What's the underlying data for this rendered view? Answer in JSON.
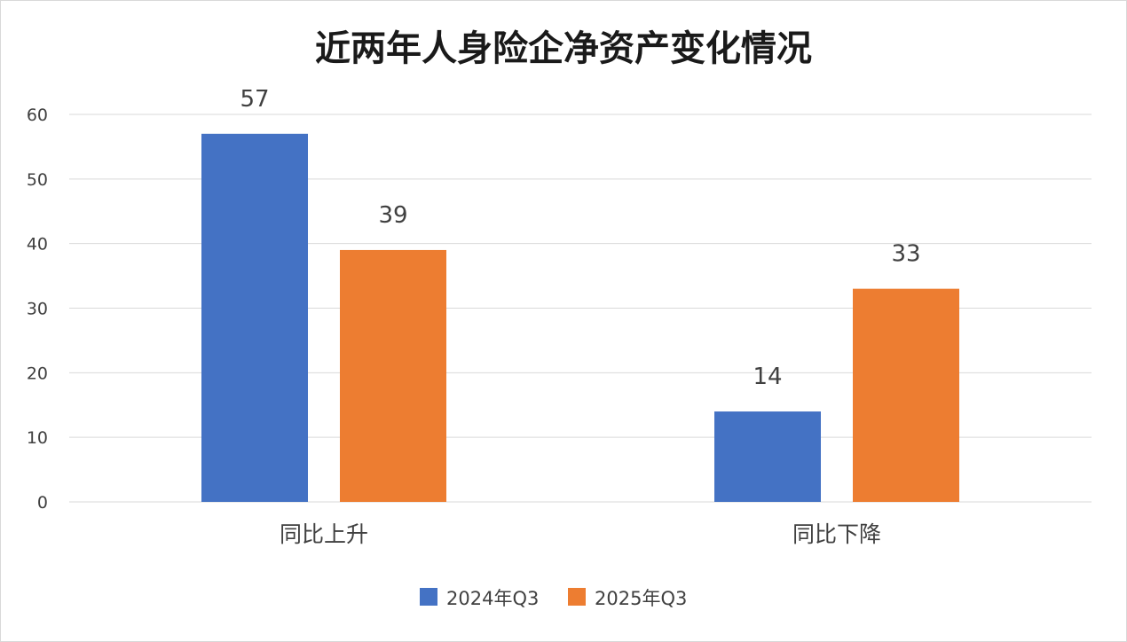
{
  "chart_data": {
    "type": "bar",
    "title": "近两年人身险企净资产变化情况",
    "categories": [
      "同比上升",
      "同比下降"
    ],
    "series": [
      {
        "name": "2024年Q3",
        "values": [
          57,
          14
        ],
        "color": "#4472C4"
      },
      {
        "name": "2025年Q3",
        "values": [
          39,
          33
        ],
        "color": "#ED7D31"
      }
    ],
    "ylim": [
      0,
      60
    ],
    "yticks": [
      0,
      10,
      20,
      30,
      40,
      50,
      60
    ],
    "grid": true,
    "gridColor": "#D9D9D9",
    "legend": "bottom"
  }
}
